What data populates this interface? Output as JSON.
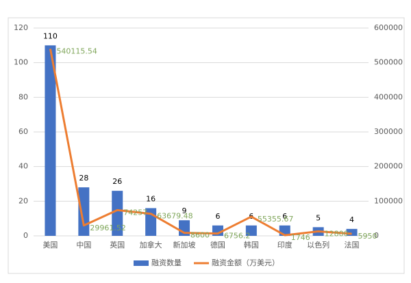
{
  "chart_data": {
    "type": "combo",
    "categories": [
      "美国",
      "中国",
      "英国",
      "加拿大",
      "新加坡",
      "德国",
      "韩国",
      "印度",
      "以色列",
      "法国"
    ],
    "series": [
      {
        "name": "融资数量",
        "type": "bar",
        "color": "#4472c4",
        "values": [
          110,
          28,
          26,
          16,
          9,
          6,
          6,
          6,
          5,
          4
        ]
      },
      {
        "name": "融资金额（万美元）",
        "type": "line",
        "axis": "y2",
        "color": "#ed7d31",
        "label_color": "#7fa65a",
        "values": [
          540115.54,
          29961.52,
          74257,
          63679.48,
          8600,
          6756.2,
          55355.67,
          1746,
          12800,
          5950
        ]
      }
    ],
    "ylim": [
      0,
      120
    ],
    "yticks": [
      0,
      20,
      40,
      60,
      80,
      100,
      120
    ],
    "y2lim": [
      0,
      600000
    ],
    "y2ticks": [
      0,
      100000,
      200000,
      300000,
      400000,
      500000,
      600000
    ],
    "grid": true,
    "legend": "bottom"
  }
}
